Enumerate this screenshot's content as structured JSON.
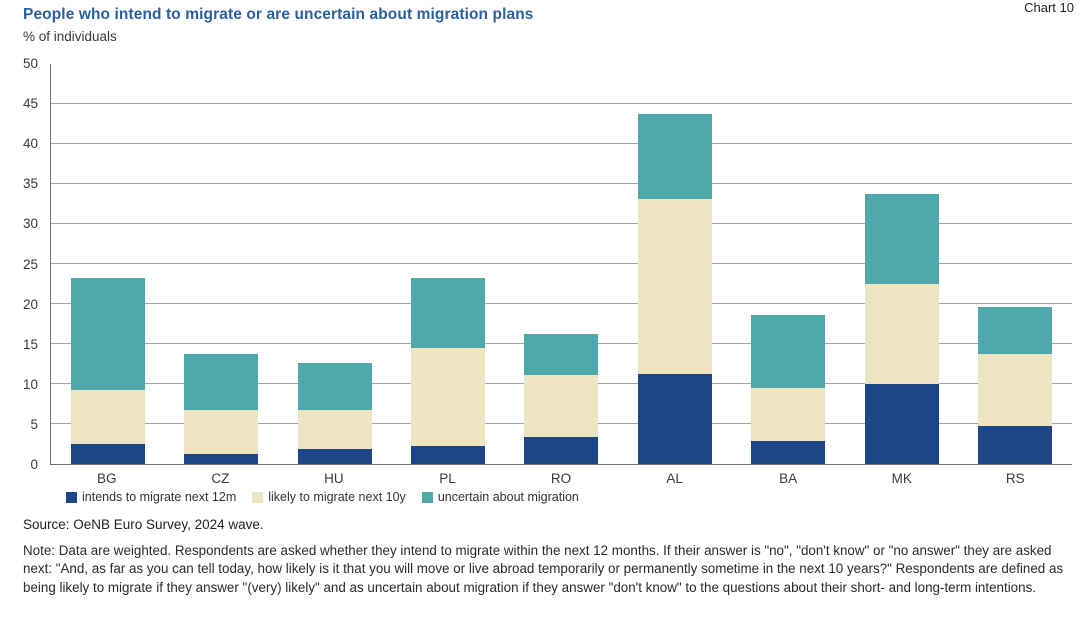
{
  "header": {
    "chart_label": "Chart 10",
    "title": "People who intend to migrate or are uncertain about migration plans",
    "subtitle": "% of individuals"
  },
  "chart_data": {
    "type": "bar",
    "stacked": true,
    "title": "People who intend to migrate or are uncertain about migration plans",
    "unit_label": "% of individuals",
    "categories": [
      "BG",
      "CZ",
      "HU",
      "PL",
      "RO",
      "AL",
      "BA",
      "MK",
      "RS"
    ],
    "series": [
      {
        "name": "intends to migrate next 12m",
        "color": "#1c4687",
        "values": [
          2.5,
          1.2,
          1.9,
          2.2,
          3.4,
          11.2,
          2.9,
          10.0,
          4.7
        ]
      },
      {
        "name": "likely to migrate next 10y",
        "color": "#ede4c2",
        "values": [
          6.8,
          5.5,
          4.8,
          12.3,
          7.7,
          21.9,
          6.6,
          12.5,
          9.0
        ]
      },
      {
        "name": "uncertain about migration",
        "color": "#4fa9ab",
        "values": [
          13.9,
          7.1,
          5.9,
          8.8,
          5.1,
          10.7,
          9.1,
          11.2,
          5.9
        ]
      }
    ],
    "totals": [
      23.2,
      13.8,
      12.6,
      23.3,
      16.2,
      43.8,
      18.6,
      33.7,
      19.6
    ],
    "ylim": [
      0,
      50
    ],
    "ytick_step": 5,
    "grid": "horizontal",
    "legend_position": "bottom"
  },
  "footer": {
    "source": "Source: OeNB Euro Survey, 2024 wave.",
    "note": "Note: Data are weighted. Respondents are asked whether they intend to migrate within the next 12 months. If their answer is \"no\", \"don't know\" or \"no answer\" they are asked next: \"And, as far as you can tell today, how likely is it that you will move or live abroad temporarily or permanently sometime in the next 10 years?\" Respondents are defined as being likely to migrate if they answer \"(very) likely\" and as uncertain about migration if they answer \"don't know\" to the questions about their short- and long-term intentions."
  }
}
